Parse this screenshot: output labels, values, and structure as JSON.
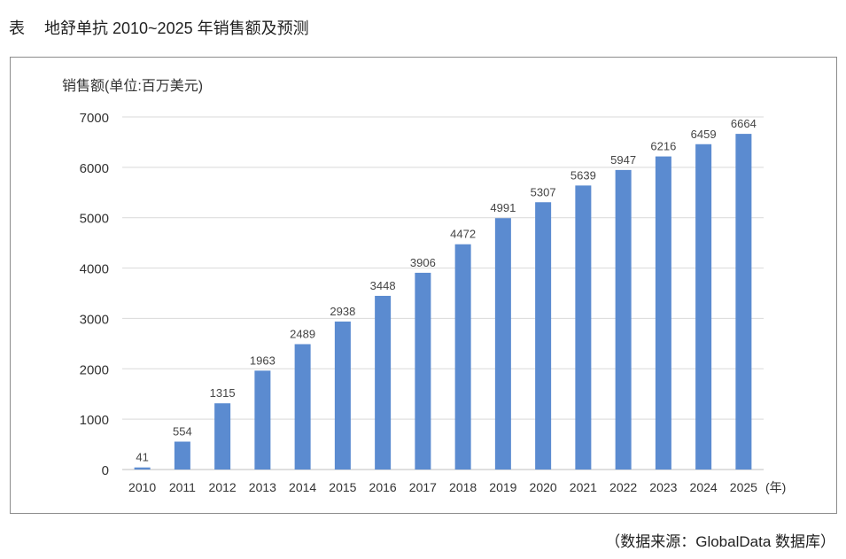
{
  "caption": {
    "label": "表",
    "title": "地舒单抗 2010~2025 年销售额及预测"
  },
  "source": "（数据来源：GlobalData 数据库）",
  "chart_data": {
    "type": "bar",
    "ylabel": "销售额(单位:百万美元)",
    "xunit": "(年)",
    "categories": [
      "2010",
      "2011",
      "2012",
      "2013",
      "2014",
      "2015",
      "2016",
      "2017",
      "2018",
      "2019",
      "2020",
      "2021",
      "2022",
      "2023",
      "2024",
      "2025"
    ],
    "values": [
      41,
      554,
      1315,
      1963,
      2489,
      2938,
      3448,
      3906,
      4472,
      4991,
      5307,
      5639,
      5947,
      6216,
      6459,
      6664
    ],
    "ylim": [
      0,
      7000
    ],
    "yticks": [
      0,
      1000,
      2000,
      3000,
      4000,
      5000,
      6000,
      7000
    ],
    "grid": true,
    "bar_color": "#5b8bd0"
  }
}
